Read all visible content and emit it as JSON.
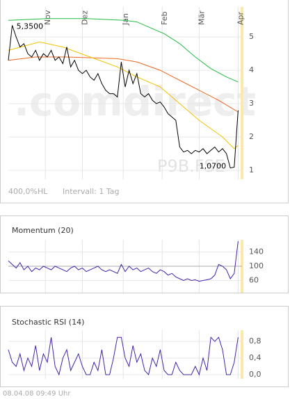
{
  "chart_data": [
    {
      "type": "line",
      "watermark": ".comdirect",
      "symbol": "P9B.FSE",
      "max_label": "5,3500",
      "min_label": "1,0700",
      "range_label": "400,0%HL",
      "interval_label": "Intervall: 1 Tag",
      "xlim": [
        0,
        120
      ],
      "xticks": [
        {
          "value": 19,
          "label": "Nov"
        },
        {
          "value": 38,
          "label": "Dez"
        },
        {
          "value": 59,
          "label": "Jan"
        },
        {
          "value": 79,
          "label": "Feb"
        },
        {
          "value": 98,
          "label": "Mär"
        },
        {
          "value": 118,
          "label": "Apr"
        }
      ],
      "ylim": [
        0.73,
        5.9
      ],
      "yticks": [
        1,
        2,
        3,
        4,
        5
      ],
      "grid": true,
      "series": [
        {
          "color": "#22bb44",
          "x": [
            0,
            20,
            40,
            60,
            66,
            72,
            80,
            88,
            96,
            104,
            112,
            118
          ],
          "values": [
            5.5,
            5.55,
            5.55,
            5.5,
            5.45,
            5.3,
            5.1,
            4.8,
            4.4,
            4.05,
            3.8,
            3.65
          ]
        },
        {
          "color": "#ee6622",
          "x": [
            0,
            14,
            30,
            56,
            66,
            78,
            88,
            98,
            108,
            118
          ],
          "values": [
            4.3,
            4.4,
            4.4,
            4.35,
            4.25,
            4.0,
            3.7,
            3.4,
            3.1,
            2.75
          ]
        },
        {
          "color": "#f2c200",
          "x": [
            0,
            16,
            28,
            42,
            56,
            66,
            78,
            88,
            98,
            110,
            116,
            118
          ],
          "values": [
            4.6,
            4.85,
            4.7,
            4.4,
            4.1,
            3.8,
            3.5,
            3.0,
            2.5,
            2.0,
            1.65,
            1.75
          ]
        },
        {
          "color": "#000000",
          "x": [
            0,
            2,
            4,
            6,
            8,
            10,
            12,
            14,
            16,
            18,
            20,
            22,
            24,
            26,
            28,
            30,
            32,
            34,
            36,
            38,
            40,
            42,
            44,
            46,
            48,
            50,
            52,
            54,
            56,
            58,
            60,
            62,
            64,
            66,
            68,
            70,
            72,
            74,
            76,
            78,
            80,
            82,
            84,
            86,
            88,
            90,
            92,
            94,
            96,
            98,
            100,
            102,
            104,
            106,
            108,
            110,
            112,
            114,
            116,
            118
          ],
          "values": [
            4.3,
            5.35,
            5.0,
            4.7,
            4.8,
            4.5,
            4.4,
            4.6,
            4.3,
            4.5,
            4.4,
            4.6,
            4.3,
            4.4,
            4.2,
            4.7,
            4.1,
            4.3,
            4.0,
            3.9,
            4.0,
            3.8,
            3.7,
            3.9,
            3.6,
            3.4,
            3.3,
            3.3,
            3.2,
            4.25,
            3.5,
            4.0,
            3.6,
            3.9,
            3.3,
            3.2,
            3.3,
            3.1,
            3.0,
            3.05,
            2.9,
            2.7,
            2.6,
            2.5,
            1.7,
            1.55,
            1.6,
            1.5,
            1.6,
            1.55,
            1.65,
            1.5,
            1.6,
            1.7,
            1.55,
            1.65,
            1.5,
            1.07,
            1.1,
            2.8
          ]
        }
      ]
    },
    {
      "type": "line",
      "title": "Momentum (20)",
      "xlim": [
        0,
        120
      ],
      "ylim": [
        26,
        174
      ],
      "yticks": [
        60,
        100,
        140
      ],
      "grid": true,
      "series": [
        {
          "color": "#4422aa",
          "x": [
            0,
            2,
            4,
            6,
            8,
            10,
            12,
            14,
            16,
            18,
            20,
            22,
            24,
            26,
            28,
            30,
            32,
            34,
            36,
            38,
            40,
            42,
            44,
            46,
            48,
            50,
            52,
            54,
            56,
            58,
            60,
            62,
            64,
            66,
            68,
            70,
            72,
            74,
            76,
            78,
            80,
            82,
            84,
            86,
            88,
            90,
            92,
            94,
            96,
            98,
            100,
            102,
            104,
            106,
            108,
            110,
            112,
            114,
            116,
            118
          ],
          "values": [
            115,
            105,
            95,
            110,
            90,
            100,
            85,
            95,
            90,
            100,
            95,
            90,
            100,
            95,
            90,
            85,
            95,
            100,
            90,
            95,
            85,
            90,
            95,
            100,
            90,
            85,
            90,
            85,
            80,
            105,
            85,
            100,
            90,
            95,
            85,
            90,
            95,
            85,
            80,
            90,
            85,
            75,
            80,
            70,
            65,
            60,
            65,
            60,
            62,
            58,
            60,
            62,
            65,
            75,
            105,
            100,
            90,
            65,
            80,
            170
          ]
        }
      ]
    },
    {
      "type": "line",
      "title": "Stochastic RSI (14)",
      "xlim": [
        0,
        120
      ],
      "ylim": [
        -0.1,
        1.07
      ],
      "yticks": [
        {
          "value": 0.8,
          "label": "0,8"
        },
        {
          "value": 0.4,
          "label": "0,4"
        },
        {
          "value": 0,
          "label": "0,0"
        }
      ],
      "grid": true,
      "series": [
        {
          "color": "#4422aa",
          "x": [
            0,
            2,
            4,
            6,
            8,
            10,
            12,
            14,
            16,
            18,
            20,
            22,
            24,
            26,
            28,
            30,
            32,
            34,
            36,
            38,
            40,
            42,
            44,
            46,
            48,
            50,
            52,
            54,
            56,
            58,
            60,
            62,
            64,
            66,
            68,
            70,
            72,
            74,
            76,
            78,
            80,
            82,
            84,
            86,
            88,
            90,
            92,
            94,
            96,
            98,
            100,
            102,
            104,
            106,
            108,
            110,
            112,
            114,
            116,
            118
          ],
          "values": [
            0.6,
            0.3,
            0.2,
            0.5,
            0.1,
            0.4,
            0.2,
            0.7,
            0.1,
            0.5,
            0.3,
            0.9,
            0.2,
            0,
            0.4,
            0.6,
            0.1,
            0.3,
            0.5,
            0.2,
            0,
            0,
            0.3,
            0.1,
            0.6,
            0,
            0,
            0.4,
            0.9,
            0.9,
            0.4,
            0.2,
            0.7,
            0.3,
            0.5,
            0.1,
            0,
            0.4,
            0.2,
            0.6,
            0.1,
            0,
            0,
            0.3,
            0.1,
            0,
            0,
            0,
            0.2,
            0,
            0.4,
            0.1,
            0.9,
            0.8,
            0.9,
            0.6,
            0,
            0,
            0.3,
            0.9
          ]
        }
      ]
    }
  ],
  "footer": "08.04.08 09:49 Uhr"
}
